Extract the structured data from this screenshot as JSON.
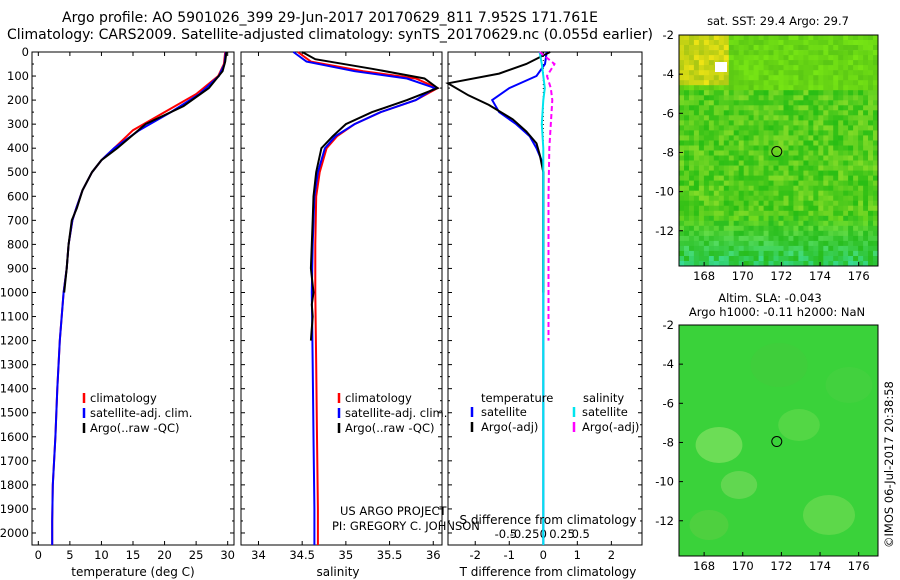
{
  "header": {
    "line1": "Argo profile: AO 5901026_399 29-Jun-2017 20170629_811 7.952S 171.761E",
    "line2": "Climatology: CARS2009. Satellite-adjusted climatology: synTS_20170629.nc (0.055d earlier)"
  },
  "legend_ts": {
    "climatology": "climatology",
    "satellite": "satellite-adj. clim.",
    "argo": "Argo(..raw -QC)"
  },
  "legend_diff": {
    "temp_head": "temperature",
    "sal_head": "salinity",
    "sat": "satellite",
    "argo": "Argo(-adj)"
  },
  "project": {
    "line1": "US ARGO PROJECT",
    "line2": "PI: GREGORY C. JOHNSON"
  },
  "sst_map": {
    "title": "sat. SST: 29.4  Argo: 29.7",
    "xticks": [
      "168",
      "170",
      "172",
      "174",
      "176"
    ],
    "yticks": [
      "-2",
      "-4",
      "-6",
      "-8",
      "-10",
      "-12"
    ]
  },
  "sla_map": {
    "title1": "Altim. SLA: -0.043",
    "title2": "Argo h1000: -0.11  h2000: NaN",
    "xticks": [
      "168",
      "170",
      "172",
      "174",
      "176"
    ],
    "yticks": [
      "-2",
      "-4",
      "-6",
      "-8",
      "-10",
      "-12"
    ]
  },
  "stamp": "©IMOS 06-Jul-2017 20:38:58",
  "colors": {
    "climatology": "#ff0000",
    "satellite": "#0000ff",
    "argo": "#000000",
    "sal_satellite": "#00e5ee",
    "sal_argo": "#ff00ff"
  },
  "chart_data": [
    {
      "type": "line",
      "xlabel": "temperature (deg C)",
      "ylabel": "",
      "xlim": [
        -1,
        31
      ],
      "ylim": [
        2050,
        0
      ],
      "xticks": [
        "0",
        "5",
        "10",
        "15",
        "20",
        "25",
        "30"
      ],
      "yticks": [
        "0",
        "100",
        "200",
        "300",
        "400",
        "500",
        "600",
        "700",
        "800",
        "900",
        "1000",
        "1100",
        "1200",
        "1300",
        "1400",
        "1500",
        "1600",
        "1700",
        "1800",
        "1900",
        "2000"
      ],
      "series": [
        {
          "name": "climatology",
          "x": [
            29.6,
            29.4,
            28.5,
            25,
            20,
            15,
            12,
            10,
            8.5,
            7,
            6,
            5.4,
            4.8,
            4.5,
            4,
            3.7,
            3.4,
            3,
            2.7,
            2.5,
            2.3,
            2.2,
            2.2
          ],
          "y": [
            0,
            50,
            100,
            175,
            250,
            325,
            400,
            450,
            500,
            575,
            650,
            700,
            800,
            900,
            1000,
            1100,
            1200,
            1400,
            1600,
            1700,
            1800,
            1950,
            2050
          ]
        },
        {
          "name": "satellite-adj. clim.",
          "x": [
            29.7,
            29.5,
            28.6,
            25.5,
            21,
            16,
            12,
            10,
            8.5,
            7,
            6,
            5.4,
            4.8,
            4.5,
            4,
            3.7,
            3.4,
            3,
            2.7,
            2.5,
            2.3,
            2.2,
            2.2
          ],
          "y": [
            0,
            50,
            100,
            175,
            250,
            325,
            400,
            450,
            500,
            575,
            650,
            700,
            800,
            900,
            1000,
            1100,
            1200,
            1400,
            1600,
            1700,
            1800,
            1950,
            2050
          ]
        },
        {
          "name": "Argo(..raw -QC)",
          "x": [
            29.8,
            29.6,
            29.2,
            27,
            23,
            17,
            12.5,
            10,
            8.5,
            7,
            6.1,
            5.3,
            4.8,
            4.5,
            4.1
          ],
          "y": [
            0,
            40,
            80,
            150,
            225,
            300,
            400,
            450,
            500,
            575,
            650,
            700,
            800,
            900,
            1000
          ]
        }
      ]
    },
    {
      "type": "line",
      "xlabel": "salinity",
      "ylabel": "",
      "xlim": [
        33.8,
        36.1
      ],
      "ylim": [
        2050,
        0
      ],
      "xticks": [
        "34",
        "34.5",
        "35",
        "35.5",
        "36"
      ],
      "series": [
        {
          "name": "climatology",
          "x": [
            34.45,
            34.6,
            35.2,
            35.8,
            36.05,
            35.8,
            35.4,
            35.1,
            34.9,
            34.78,
            34.7,
            34.66,
            34.65,
            34.65,
            34.66,
            34.67,
            34.68,
            34.68
          ],
          "y": [
            0,
            40,
            80,
            110,
            150,
            200,
            250,
            300,
            350,
            400,
            500,
            600,
            800,
            1000,
            1300,
            1600,
            1900,
            2050
          ]
        },
        {
          "name": "satellite-adj. clim.",
          "x": [
            34.4,
            34.55,
            35.1,
            35.7,
            36.02,
            35.8,
            35.4,
            35.1,
            34.88,
            34.76,
            34.68,
            34.64,
            34.62,
            34.61,
            34.62,
            34.63,
            34.64,
            34.64
          ],
          "y": [
            0,
            40,
            80,
            110,
            150,
            200,
            250,
            300,
            350,
            400,
            500,
            600,
            800,
            1000,
            1300,
            1600,
            1900,
            2050
          ]
        },
        {
          "name": "Argo(..raw -QC)",
          "x": [
            34.5,
            34.65,
            35.3,
            35.9,
            36.05,
            35.7,
            35.3,
            35.0,
            34.85,
            34.72,
            34.66,
            34.63,
            34.62,
            34.61,
            34.6,
            34.63,
            34.61,
            34.62,
            34.6
          ],
          "y": [
            0,
            30,
            70,
            110,
            150,
            200,
            250,
            300,
            350,
            400,
            500,
            600,
            700,
            800,
            900,
            1000,
            1050,
            1100,
            1200
          ]
        }
      ]
    },
    {
      "type": "line",
      "xlabel": "T difference from climatology",
      "x2label": "S difference from climatology",
      "ylabel": "",
      "xlim": [
        -2.8,
        2.9
      ],
      "ylim": [
        2050,
        0
      ],
      "xticks": [
        "-2",
        "-1",
        "0",
        "1",
        "2"
      ],
      "x2ticks": [
        "-0.5",
        "-0.25",
        "0",
        "0.25",
        "0.5"
      ],
      "series": [
        {
          "name": "temperature satellite",
          "x": [
            0.1,
            0.05,
            -0.2,
            -1.0,
            -1.5,
            -1.3,
            -0.8,
            -0.4,
            -0.2,
            -0.05,
            0,
            0,
            0,
            0,
            0
          ],
          "y": [
            0,
            50,
            100,
            150,
            200,
            250,
            300,
            350,
            400,
            450,
            500,
            700,
            1000,
            1500,
            2050
          ]
        },
        {
          "name": "temperature Argo(-adj)",
          "x": [
            0.2,
            -0.5,
            -1.3,
            -2.8,
            -2.2,
            -1.6,
            -0.9,
            -0.5,
            -0.2,
            -0.1,
            0,
            0,
            0
          ],
          "y": [
            0,
            50,
            90,
            130,
            180,
            220,
            280,
            330,
            380,
            430,
            500,
            700,
            1000
          ]
        },
        {
          "name": "salinity satellite",
          "x": [
            -0.05,
            -0.02,
            0,
            0.02,
            0,
            -0.02,
            0,
            0,
            0,
            0
          ],
          "y": [
            0,
            50,
            100,
            150,
            200,
            300,
            400,
            700,
            1200,
            2050
          ]
        },
        {
          "name": "salinity Argo(-adj)",
          "x": [
            -0.05,
            0.15,
            0.05,
            0.1,
            0.12,
            0.1,
            0.08,
            0.07,
            0.07,
            0.07
          ],
          "y": [
            0,
            50,
            100,
            150,
            200,
            300,
            400,
            600,
            900,
            1200
          ]
        }
      ]
    }
  ]
}
